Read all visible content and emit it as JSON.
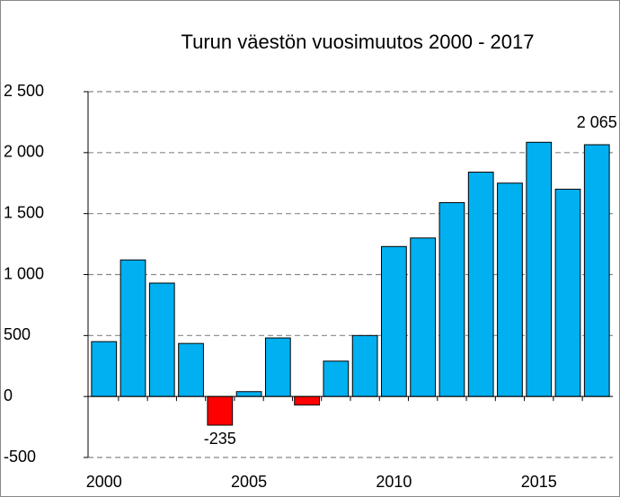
{
  "chart_data": {
    "type": "bar",
    "title": "Turun väestön vuosimuutos 2000 - 2017",
    "x": [
      2000,
      2001,
      2002,
      2003,
      2004,
      2005,
      2006,
      2007,
      2008,
      2009,
      2010,
      2011,
      2012,
      2013,
      2014,
      2015,
      2016,
      2017
    ],
    "values": [
      450,
      1120,
      930,
      435,
      -235,
      40,
      480,
      -70,
      290,
      500,
      1230,
      1300,
      1590,
      1840,
      1750,
      2085,
      1700,
      2065
    ],
    "value_labels": [
      null,
      null,
      null,
      null,
      "-235",
      null,
      null,
      null,
      null,
      null,
      null,
      null,
      null,
      null,
      null,
      null,
      null,
      "2 065"
    ],
    "color": "#00b0f0",
    "negative_color": "#ff0000",
    "xlim": [
      1999.45,
      2017.55
    ],
    "xticks": [
      2000,
      2005,
      2010,
      2015
    ],
    "ylim": [
      -500,
      2500
    ],
    "yticks": [
      {
        "value": -500,
        "label": "-500"
      },
      0,
      500,
      {
        "value": 1000,
        "label": "1 000"
      },
      {
        "value": 1500,
        "label": "1 500"
      },
      {
        "value": 2000,
        "label": "2 000"
      },
      {
        "value": 2500,
        "label": "2 500"
      }
    ],
    "grid": true
  }
}
